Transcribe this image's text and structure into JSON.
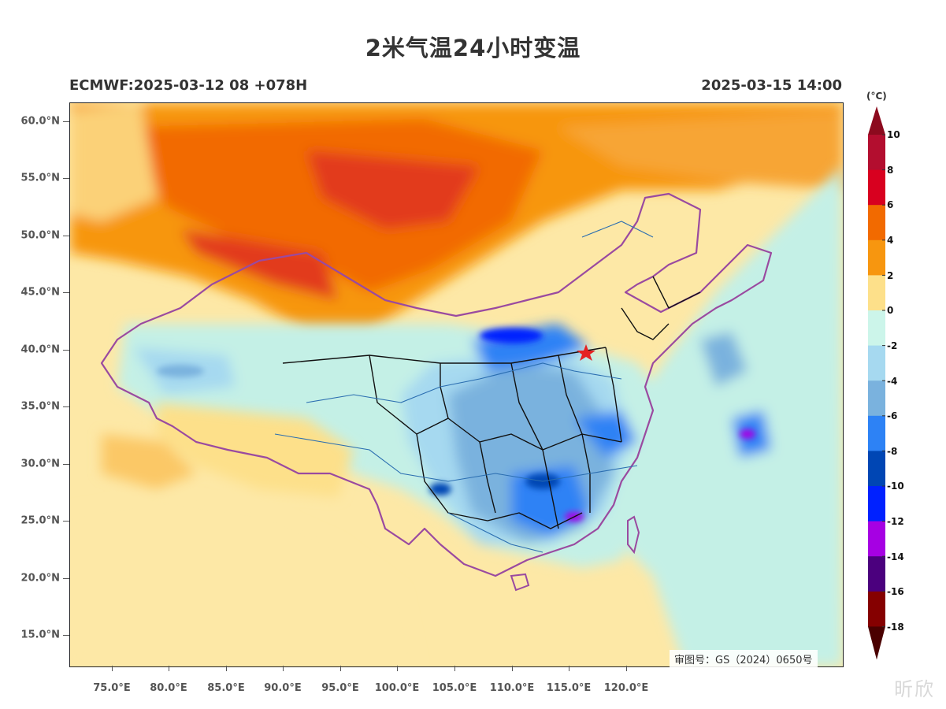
{
  "title": "2米气温24小时变温",
  "subtitle_left": "ECMWF:2025-03-12 08 +078H",
  "subtitle_right": "2025-03-15 14:00",
  "latitude_labels": [
    "60.0°N",
    "55.0°N",
    "50.0°N",
    "45.0°N",
    "40.0°N",
    "35.0°N",
    "30.0°N",
    "25.0°N",
    "20.0°N",
    "15.0°N"
  ],
  "longitude_labels": [
    "75.0°E",
    "80.0°E",
    "85.0°E",
    "90.0°E",
    "95.0°E",
    "100.0°E",
    "105.0°E",
    "110.0°E",
    "115.0°E",
    "120.0°E"
  ],
  "map_extent": {
    "lon_min": 71.5,
    "lon_max": 139.0,
    "lat_min": 12.5,
    "lat_max": 62.0
  },
  "review_number": "审图号：GS（2024）0650号",
  "watermark_text": "昕欣",
  "colorbar": {
    "unit": "(°C)",
    "labels": [
      "10",
      "8",
      "6",
      "4",
      "2",
      "0",
      "-2",
      "-4",
      "-6",
      "-8",
      "-10",
      "-12",
      "-14",
      "-16",
      "-18"
    ],
    "colors": [
      "#b30e2f",
      "#d8001f",
      "#f26a00",
      "#f7960f",
      "#fde08a",
      "#ccf5ea",
      "#a6d9f0",
      "#7ab2de",
      "#2d82f5",
      "#0046b4",
      "#0021ff",
      "#a600e3",
      "#4b007e",
      "#850000"
    ],
    "top_cap_color": "#8c0a1e",
    "bottom_cap_color": "#4a0000"
  },
  "legend_colors": {
    "ocean_warm": "#fde8a6",
    "ocean_cool": "#c4f0e6",
    "frame": "#222222",
    "national_border": "#9a4aa0",
    "province_border": "#111111",
    "river": "#2a6db0",
    "beijing_star": "#e52222"
  }
}
